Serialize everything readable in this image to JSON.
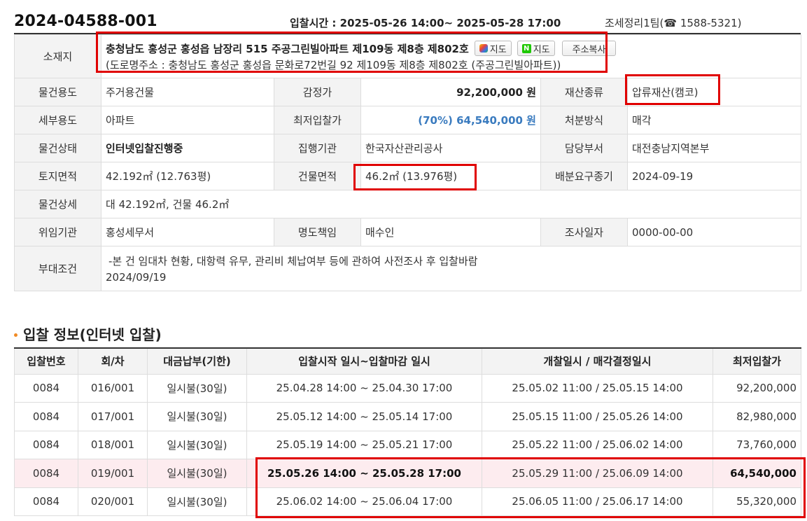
{
  "header": {
    "case_no": "2024-04588-001",
    "bid_time": "입찰시간 : 2025-05-26 14:00~ 2025-05-28 17:00",
    "team": "조세정리1팀(☎ 1588-5321)"
  },
  "info": {
    "location_label": "소재지",
    "address": "충청남도 홍성군 홍성읍 남장리 515 주공그린빌아파트 제109동 제8층 제802호",
    "road_address": "(도로명주소 : 충청남도 홍성군 홍성읍 문화로72번길 92 제109동 제8층 제802호 (주공그린빌아파트))",
    "map_btn_daum": "지도",
    "map_btn_naver": "지도",
    "copy_btn": "주소복사",
    "usage_label": "물건용도",
    "usage": "주거용건물",
    "appraisal_label": "감정가",
    "appraisal": "92,200,000 원",
    "asset_type_label": "재산종류",
    "asset_type": "압류재산(캠코)",
    "detail_usage_label": "세부용도",
    "detail_usage": "아파트",
    "min_bid_label": "최저입찰가",
    "min_bid": "(70%) 64,540,000 원",
    "disposal_label": "처분방식",
    "disposal": "매각",
    "status_label": "물건상태",
    "status": "인터넷입찰진행중",
    "agency_label": "집행기관",
    "agency": "한국자산관리공사",
    "dept_label": "담당부서",
    "dept": "대전충남지역본부",
    "land_area_label": "토지면적",
    "land_area": "42.192㎡ (12.763평)",
    "building_area_label": "건물면적",
    "building_area": "46.2㎡ (13.976평)",
    "dist_deadline_label": "배분요구종기",
    "dist_deadline": "2024-09-19",
    "detail_label": "물건상세",
    "detail": "대 42.192㎡, 건물 46.2㎡",
    "delegate_label": "위임기관",
    "delegate": "홍성세무서",
    "transfer_label": "명도책임",
    "transfer": "매수인",
    "survey_label": "조사일자",
    "survey": "0000-00-00",
    "condition_label": "부대조건",
    "condition_line1": "-본 건 임대차 현황, 대항력 유무, 관리비 체납여부 등에 관하여 사전조사 후 입찰바람",
    "condition_line2": "2024/09/19"
  },
  "bid_section": {
    "title": "입찰 정보(인터넷 입찰)",
    "columns": [
      "입찰번호",
      "회/차",
      "대금납부(기한)",
      "입찰시작 일시~입찰마감 일시",
      "개찰일시 / 매각결정일시",
      "최저입찰가"
    ],
    "rows": [
      [
        "0084",
        "016/001",
        "일시불(30일)",
        "25.04.28 14:00 ~ 25.04.30 17:00",
        "25.05.02 11:00 / 25.05.15 14:00",
        "92,200,000"
      ],
      [
        "0084",
        "017/001",
        "일시불(30일)",
        "25.05.12 14:00 ~ 25.05.14 17:00",
        "25.05.15 11:00 / 25.05.26 14:00",
        "82,980,000"
      ],
      [
        "0084",
        "018/001",
        "일시불(30일)",
        "25.05.19 14:00 ~ 25.05.21 17:00",
        "25.05.22 11:00 / 25.06.02 14:00",
        "73,760,000"
      ],
      [
        "0084",
        "019/001",
        "일시불(30일)",
        "25.05.26 14:00 ~ 25.05.28 17:00",
        "25.05.29 11:00 / 25.06.09 14:00",
        "64,540,000"
      ],
      [
        "0084",
        "020/001",
        "일시불(30일)",
        "25.06.02 14:00 ~ 25.06.04 17:00",
        "25.06.05 11:00 / 25.06.17 14:00",
        "55,320,000"
      ]
    ]
  },
  "colors": {
    "highlight_box": "#e00000",
    "current_row_bg": "#fdecef",
    "min_bid_text": "#3a7bbf",
    "bullet": "#f08a24"
  }
}
